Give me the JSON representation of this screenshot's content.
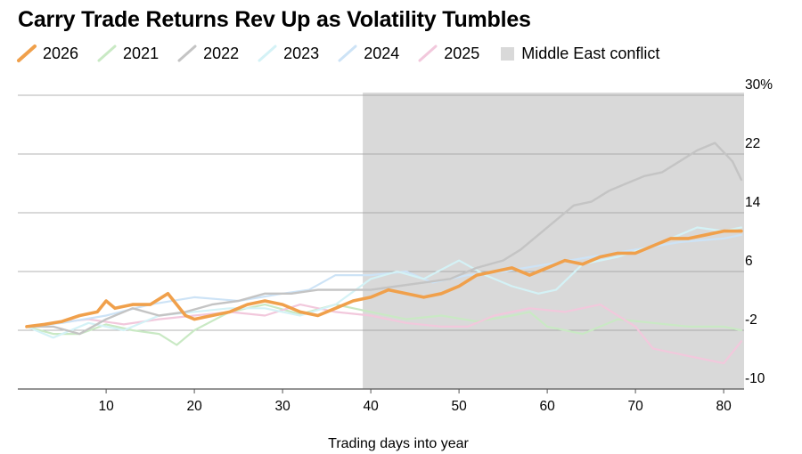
{
  "chart_data": {
    "type": "line",
    "title": "Carry Trade Returns Rev Up as Volatility Tumbles",
    "xlabel": "Trading days into year",
    "ylabel": "",
    "xlim": [
      1,
      82
    ],
    "ylim": [
      -10,
      30
    ],
    "y_unit_label": "30%",
    "x_ticks": [
      10,
      20,
      30,
      40,
      50,
      60,
      70,
      80
    ],
    "y_ticks": [
      30,
      22,
      14,
      6,
      -2,
      -10
    ],
    "y_tick_labels": [
      "30%",
      "22",
      "14",
      "6",
      "-2",
      "-10"
    ],
    "shaded_region": {
      "label": "Middle East conflict",
      "x_start": 40,
      "x_end": 82,
      "color": "#d9d9d9"
    },
    "series": [
      {
        "name": "2021",
        "color": "#c9e9c4",
        "width": 2.2,
        "points": [
          [
            1,
            -1.5
          ],
          [
            4,
            -2.5
          ],
          [
            7,
            -2.5
          ],
          [
            10,
            -1.2
          ],
          [
            13,
            -2.0
          ],
          [
            16,
            -2.5
          ],
          [
            18,
            -4.0
          ],
          [
            20,
            -2.0
          ],
          [
            24,
            0.5
          ],
          [
            28,
            1.5
          ],
          [
            32,
            0.2
          ],
          [
            36,
            1.5
          ],
          [
            40,
            0.5
          ],
          [
            44,
            -0.5
          ],
          [
            48,
            0.0
          ],
          [
            52,
            -0.8
          ],
          [
            56,
            0.0
          ],
          [
            58,
            0.5
          ],
          [
            60,
            -1.5
          ],
          [
            64,
            -2.5
          ],
          [
            68,
            -0.5
          ],
          [
            72,
            -1.0
          ],
          [
            76,
            -1.5
          ],
          [
            80,
            -1.5
          ],
          [
            82,
            -2.0
          ]
        ]
      },
      {
        "name": "2025",
        "color": "#f2c8dc",
        "width": 2.2,
        "points": [
          [
            1,
            -1.5
          ],
          [
            4,
            -1.0
          ],
          [
            8,
            -0.5
          ],
          [
            12,
            -1.2
          ],
          [
            16,
            -0.5
          ],
          [
            20,
            0.0
          ],
          [
            24,
            0.5
          ],
          [
            28,
            0.0
          ],
          [
            32,
            1.5
          ],
          [
            36,
            0.5
          ],
          [
            40,
            0.0
          ],
          [
            44,
            -1.0
          ],
          [
            48,
            -1.5
          ],
          [
            51,
            -1.5
          ],
          [
            54,
            0.0
          ],
          [
            58,
            1.0
          ],
          [
            62,
            0.5
          ],
          [
            66,
            1.5
          ],
          [
            70,
            -1.5
          ],
          [
            72,
            -4.5
          ],
          [
            74,
            -5.0
          ],
          [
            78,
            -6.0
          ],
          [
            80,
            -6.5
          ],
          [
            82,
            -3.5
          ]
        ]
      },
      {
        "name": "2024",
        "color": "#cde3f6",
        "width": 2.2,
        "points": [
          [
            1,
            -1.5
          ],
          [
            5,
            -1.0
          ],
          [
            10,
            0.0
          ],
          [
            15,
            1.5
          ],
          [
            20,
            2.5
          ],
          [
            25,
            2.0
          ],
          [
            30,
            3.0
          ],
          [
            33,
            3.5
          ],
          [
            36,
            5.5
          ],
          [
            40,
            5.5
          ],
          [
            44,
            6.0
          ],
          [
            47,
            4.5
          ],
          [
            51,
            5.5
          ],
          [
            55,
            6.0
          ],
          [
            60,
            7.0
          ],
          [
            65,
            8.0
          ],
          [
            70,
            9.0
          ],
          [
            75,
            10.0
          ],
          [
            80,
            10.5
          ],
          [
            82,
            11.0
          ]
        ]
      },
      {
        "name": "2023",
        "color": "#d4f2f6",
        "width": 2.2,
        "points": [
          [
            1,
            -1.5
          ],
          [
            4,
            -3.0
          ],
          [
            8,
            -1.0
          ],
          [
            12,
            -2.0
          ],
          [
            16,
            0.0
          ],
          [
            20,
            0.5
          ],
          [
            24,
            1.0
          ],
          [
            28,
            1.0
          ],
          [
            32,
            0.0
          ],
          [
            36,
            1.5
          ],
          [
            40,
            5.0
          ],
          [
            43,
            6.0
          ],
          [
            46,
            5.0
          ],
          [
            50,
            7.5
          ],
          [
            53,
            5.5
          ],
          [
            56,
            4.0
          ],
          [
            59,
            3.0
          ],
          [
            61,
            3.5
          ],
          [
            64,
            7.0
          ],
          [
            68,
            8.0
          ],
          [
            72,
            9.5
          ],
          [
            75,
            11.0
          ],
          [
            77,
            12.0
          ],
          [
            80,
            11.5
          ],
          [
            82,
            12.0
          ]
        ]
      },
      {
        "name": "2022",
        "color": "#c4c4c4",
        "width": 2.4,
        "points": [
          [
            1,
            -1.5
          ],
          [
            4,
            -1.5
          ],
          [
            7,
            -2.5
          ],
          [
            10,
            -0.5
          ],
          [
            13,
            1.0
          ],
          [
            16,
            0.0
          ],
          [
            19,
            0.5
          ],
          [
            22,
            1.5
          ],
          [
            25,
            2.0
          ],
          [
            28,
            3.0
          ],
          [
            31,
            3.0
          ],
          [
            34,
            3.5
          ],
          [
            37,
            3.5
          ],
          [
            40,
            3.5
          ],
          [
            43,
            4.0
          ],
          [
            46,
            4.5
          ],
          [
            49,
            5.0
          ],
          [
            52,
            6.5
          ],
          [
            55,
            7.5
          ],
          [
            57,
            9.0
          ],
          [
            59,
            11.0
          ],
          [
            61,
            13.0
          ],
          [
            63,
            15.0
          ],
          [
            65,
            15.5
          ],
          [
            67,
            17.0
          ],
          [
            69,
            18.0
          ],
          [
            71,
            19.0
          ],
          [
            73,
            19.5
          ],
          [
            75,
            21.0
          ],
          [
            77,
            22.5
          ],
          [
            79,
            23.5
          ],
          [
            81,
            21.0
          ],
          [
            82,
            18.5
          ]
        ]
      },
      {
        "name": "2026",
        "color": "#f0a04b",
        "width": 3.6,
        "points": [
          [
            1,
            -1.5
          ],
          [
            3,
            -1.2
          ],
          [
            5,
            -0.8
          ],
          [
            7,
            0.0
          ],
          [
            9,
            0.5
          ],
          [
            10,
            2.0
          ],
          [
            11,
            1.0
          ],
          [
            13,
            1.5
          ],
          [
            15,
            1.5
          ],
          [
            17,
            3.0
          ],
          [
            19,
            0.0
          ],
          [
            20,
            -0.5
          ],
          [
            22,
            0.0
          ],
          [
            24,
            0.5
          ],
          [
            26,
            1.5
          ],
          [
            28,
            2.0
          ],
          [
            30,
            1.5
          ],
          [
            32,
            0.5
          ],
          [
            34,
            0.0
          ],
          [
            36,
            1.0
          ],
          [
            38,
            2.0
          ],
          [
            40,
            2.5
          ],
          [
            42,
            3.5
          ],
          [
            44,
            3.0
          ],
          [
            46,
            2.5
          ],
          [
            48,
            3.0
          ],
          [
            50,
            4.0
          ],
          [
            52,
            5.5
          ],
          [
            54,
            6.0
          ],
          [
            56,
            6.5
          ],
          [
            58,
            5.5
          ],
          [
            60,
            6.5
          ],
          [
            62,
            7.5
          ],
          [
            64,
            7.0
          ],
          [
            66,
            8.0
          ],
          [
            68,
            8.5
          ],
          [
            70,
            8.5
          ],
          [
            72,
            9.5
          ],
          [
            74,
            10.5
          ],
          [
            76,
            10.5
          ],
          [
            78,
            11.0
          ],
          [
            80,
            11.5
          ],
          [
            82,
            11.5
          ]
        ]
      }
    ],
    "legend": [
      {
        "name": "2026",
        "color": "#f0a04b"
      },
      {
        "name": "2021",
        "color": "#c9e9c4"
      },
      {
        "name": "2022",
        "color": "#c4c4c4"
      },
      {
        "name": "2023",
        "color": "#d4f2f6"
      },
      {
        "name": "2024",
        "color": "#cde3f6"
      },
      {
        "name": "2025",
        "color": "#f2c8dc"
      }
    ]
  }
}
